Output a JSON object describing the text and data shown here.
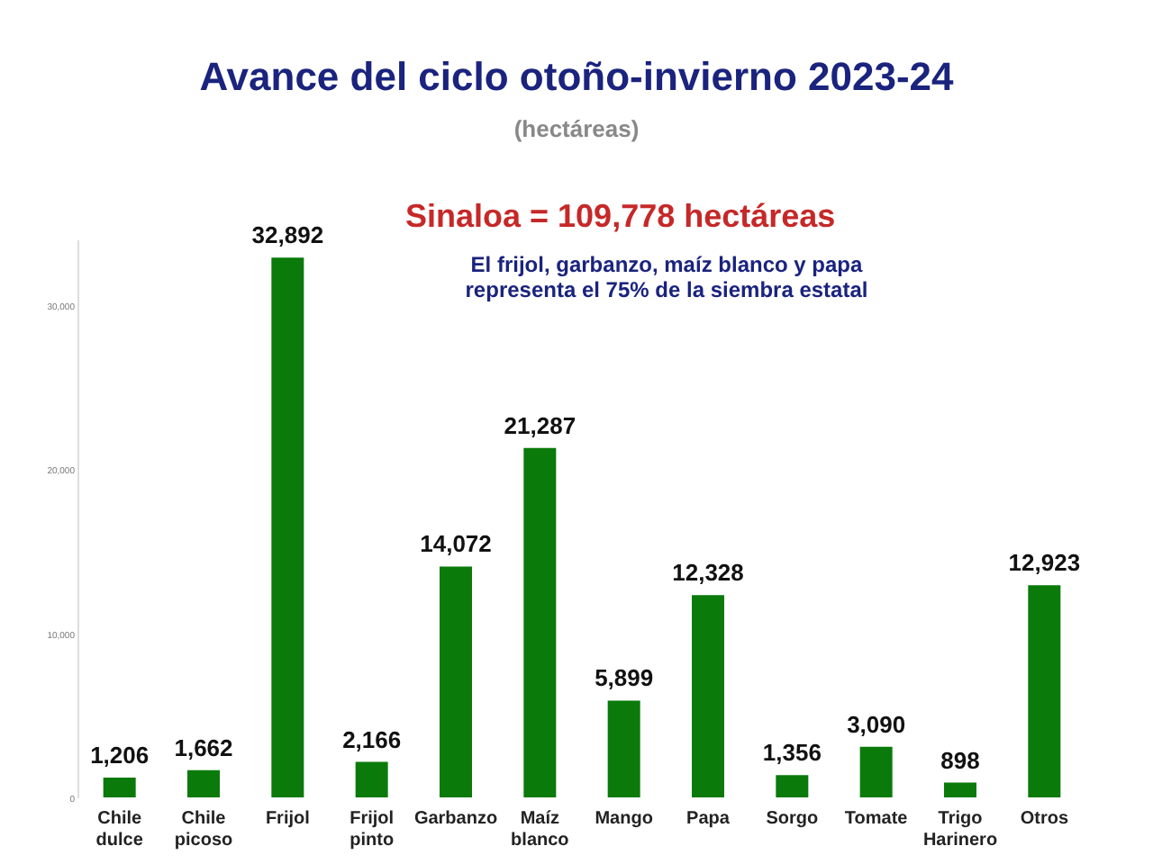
{
  "chart_data": {
    "type": "bar",
    "title": "Avance del ciclo otoño-invierno 2023-24",
    "subtitle": "(hectáreas)",
    "categories": [
      "Chile dulce",
      "Chile picoso",
      "Frijol",
      "Frijol pinto",
      "Garbanzo",
      "Maíz blanco",
      "Mango",
      "Papa",
      "Sorgo",
      "Tomate",
      "Trigo Harinero",
      "Otros"
    ],
    "values": [
      1206,
      1662,
      32892,
      2166,
      14072,
      21287,
      5899,
      12328,
      1356,
      3090,
      898,
      12923
    ],
    "value_labels": [
      "1,206",
      "1,662",
      "32,892",
      "2,166",
      "14,072",
      "21,287",
      "5,899",
      "12,328",
      "1,356",
      "3,090",
      "898",
      "12,923"
    ],
    "color": "#0a7a0a",
    "grid": false,
    "ylim": [
      0,
      34000
    ],
    "yticks": [
      0,
      {
        "value": 10000,
        "label": "10,000"
      },
      {
        "value": 20000,
        "label": "20,000"
      },
      {
        "value": 30000,
        "label": "30,000"
      }
    ],
    "annotations": [
      "Sinaloa = 109,778 hectáreas",
      "El frijol, garbanzo, maíz blanco y papa representa el 75% de la siembra estatal"
    ]
  }
}
